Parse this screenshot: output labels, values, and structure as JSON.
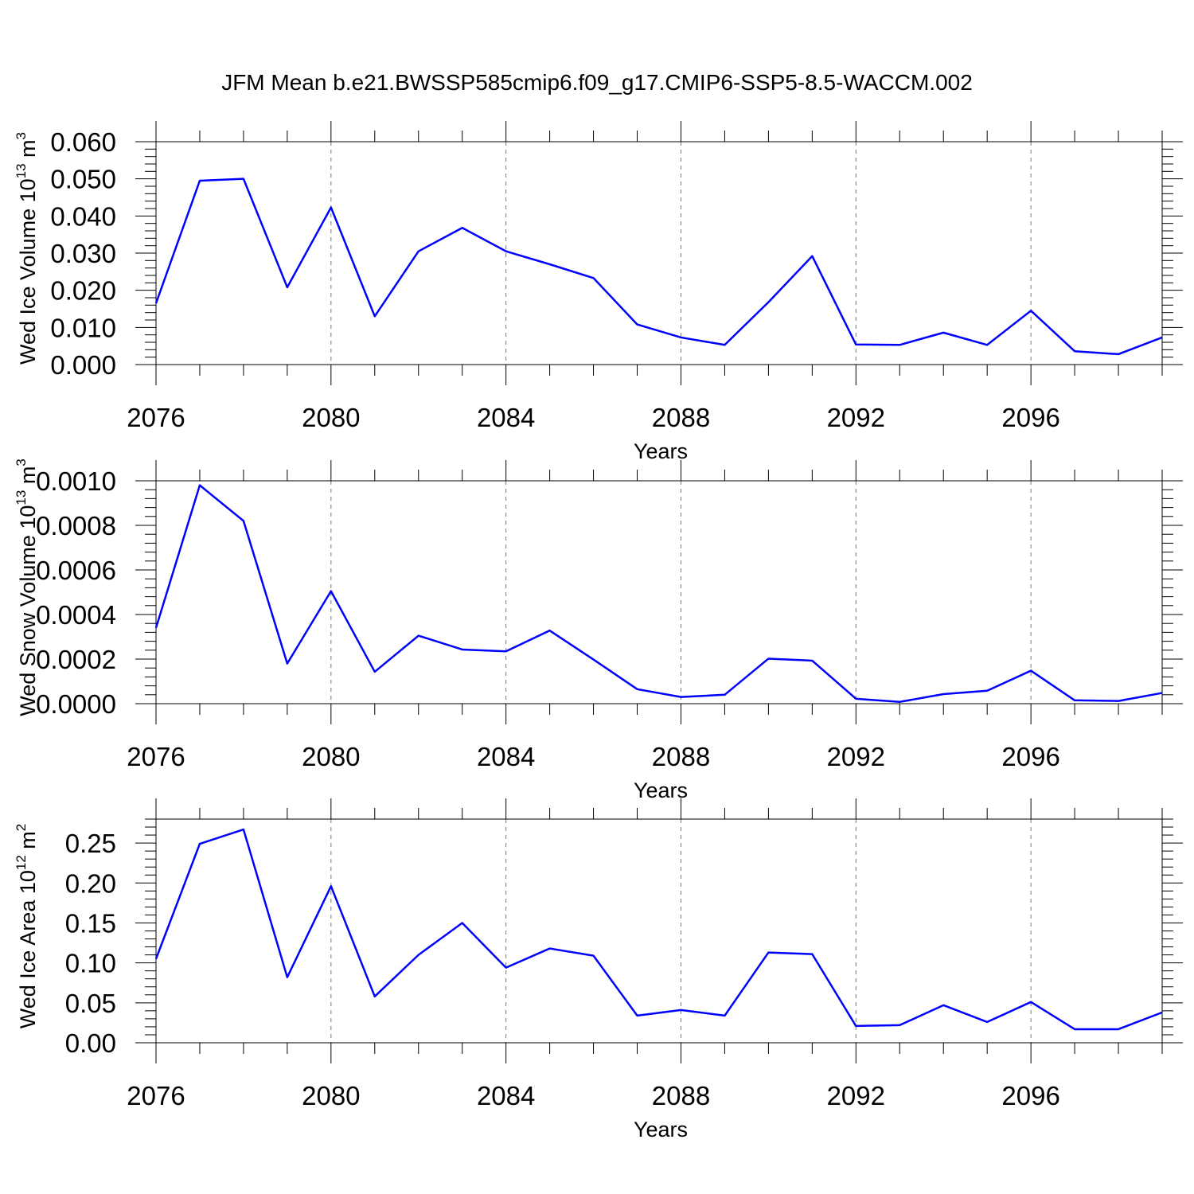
{
  "title": "JFM Mean b.e21.BWSSP585cmip6.f09_g17.CMIP6-SSP5-8.5-WACCM.002",
  "colors": {
    "line": "#0000ff",
    "axis": "#000000",
    "grid": "#777777"
  },
  "chart_data": [
    {
      "type": "line",
      "ylabel": "Wed Ice Volume",
      "yunit_base": "10",
      "yunit_exp": "13",
      "yunit_unit": "m",
      "yunit_unit_exp": "3",
      "xlabel": "Years",
      "xlim": [
        2076,
        2099
      ],
      "ylim": [
        0.0,
        0.06
      ],
      "yticks": [
        0.0,
        0.01,
        0.02,
        0.03,
        0.04,
        0.05,
        0.06
      ],
      "ytick_labels": [
        "0.000",
        "0.010",
        "0.020",
        "0.030",
        "0.040",
        "0.050",
        "0.060"
      ],
      "xticks": [
        2076,
        2080,
        2084,
        2088,
        2092,
        2096
      ],
      "xtick_labels": [
        "2076",
        "2080",
        "2084",
        "2088",
        "2092",
        "2096"
      ],
      "grid": "dashed vertical at major x ticks",
      "x": [
        2076,
        2077,
        2078,
        2079,
        2080,
        2081,
        2082,
        2083,
        2084,
        2085,
        2086,
        2087,
        2088,
        2089,
        2090,
        2091,
        2092,
        2093,
        2094,
        2095,
        2096,
        2097,
        2098,
        2099
      ],
      "values": [
        0.0165,
        0.0495,
        0.05,
        0.0208,
        0.0423,
        0.013,
        0.0305,
        0.0368,
        0.0305,
        0.027,
        0.0233,
        0.0108,
        0.0073,
        0.0053,
        0.0168,
        0.0292,
        0.0054,
        0.0053,
        0.0086,
        0.0053,
        0.0145,
        0.0036,
        0.0028,
        0.0073
      ]
    },
    {
      "type": "line",
      "ylabel": "Wed Snow Volume",
      "yunit_base": "10",
      "yunit_exp": "13",
      "yunit_unit": "m",
      "yunit_unit_exp": "3",
      "xlabel": "Years",
      "xlim": [
        2076,
        2099
      ],
      "ylim": [
        0.0,
        0.001
      ],
      "yticks": [
        0.0,
        0.0002,
        0.0004,
        0.0006,
        0.0008,
        0.001
      ],
      "ytick_labels": [
        "0.0000",
        "0.0002",
        "0.0004",
        "0.0006",
        "0.0008",
        "0.0010"
      ],
      "xticks": [
        2076,
        2080,
        2084,
        2088,
        2092,
        2096
      ],
      "xtick_labels": [
        "2076",
        "2080",
        "2084",
        "2088",
        "2092",
        "2096"
      ],
      "grid": "dashed vertical at major x ticks",
      "x": [
        2076,
        2077,
        2078,
        2079,
        2080,
        2081,
        2082,
        2083,
        2084,
        2085,
        2086,
        2087,
        2088,
        2089,
        2090,
        2091,
        2092,
        2093,
        2094,
        2095,
        2096,
        2097,
        2098,
        2099
      ],
      "values": [
        0.00034,
        0.00098,
        0.00082,
        0.00018,
        0.000505,
        0.000143,
        0.000305,
        0.000243,
        0.000235,
        0.000328,
        0.000198,
        6.5e-05,
        3e-05,
        4e-05,
        0.000202,
        0.000193,
        2.2e-05,
        8e-06,
        4.3e-05,
        5.8e-05,
        0.000148,
        1.5e-05,
        1.2e-05,
        4.8e-05
      ]
    },
    {
      "type": "line",
      "ylabel": "Wed Ice Area",
      "yunit_base": "10",
      "yunit_exp": "12",
      "yunit_unit": "m",
      "yunit_unit_exp": "2",
      "xlabel": "Years",
      "xlim": [
        2076,
        2099
      ],
      "ylim": [
        0.0,
        0.28
      ],
      "yticks": [
        0.0,
        0.05,
        0.1,
        0.15,
        0.2,
        0.25
      ],
      "ytick_labels": [
        "0.00",
        "0.05",
        "0.10",
        "0.15",
        "0.20",
        "0.25"
      ],
      "xticks": [
        2076,
        2080,
        2084,
        2088,
        2092,
        2096
      ],
      "xtick_labels": [
        "2076",
        "2080",
        "2084",
        "2088",
        "2092",
        "2096"
      ],
      "grid": "dashed vertical at major x ticks",
      "x": [
        2076,
        2077,
        2078,
        2079,
        2080,
        2081,
        2082,
        2083,
        2084,
        2085,
        2086,
        2087,
        2088,
        2089,
        2090,
        2091,
        2092,
        2093,
        2094,
        2095,
        2096,
        2097,
        2098,
        2099
      ],
      "values": [
        0.105,
        0.249,
        0.267,
        0.082,
        0.196,
        0.058,
        0.11,
        0.15,
        0.094,
        0.118,
        0.109,
        0.034,
        0.041,
        0.034,
        0.113,
        0.111,
        0.021,
        0.022,
        0.047,
        0.026,
        0.051,
        0.017,
        0.017,
        0.038
      ]
    }
  ]
}
